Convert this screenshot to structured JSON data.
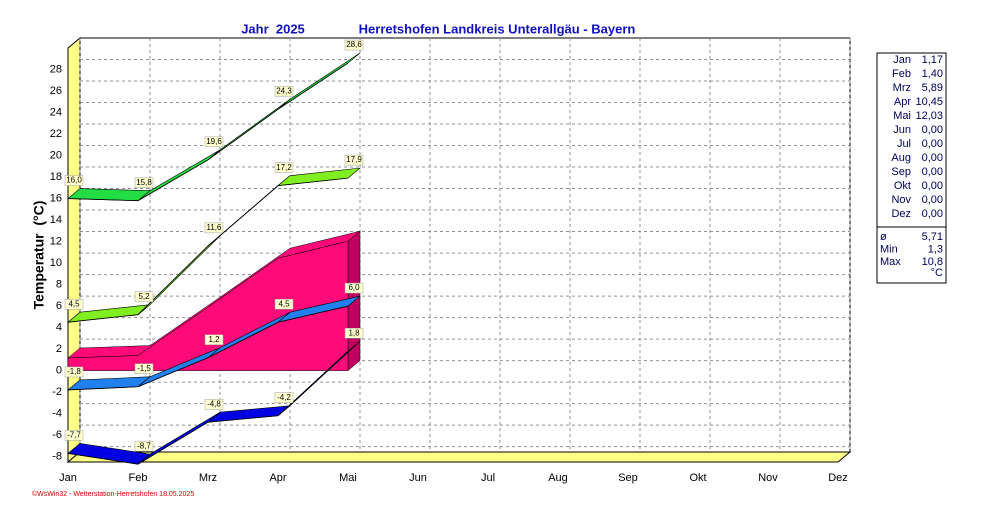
{
  "chart_data": {
    "type": "line",
    "title": "Jahr  2025",
    "subtitle": "Herretshofen Landkreis Unterallgäu - Bayern",
    "y_label": "Temperatur  (°C)",
    "categories": [
      "Jan",
      "Feb",
      "Mrz",
      "Apr",
      "Mai",
      "Jun",
      "Jul",
      "Aug",
      "Sep",
      "Okt",
      "Nov",
      "Dez"
    ],
    "ylim": [
      -8.5,
      30
    ],
    "yticks": [
      -8,
      -6,
      -4,
      -2,
      0,
      2,
      4,
      6,
      8,
      10,
      12,
      14,
      16,
      18,
      20,
      22,
      24,
      26,
      28
    ],
    "grid": true,
    "area": {
      "color": "#ff0a78",
      "values": [
        1.17,
        1.4,
        5.89,
        10.45,
        12.03,
        null,
        null,
        null,
        null,
        null,
        null,
        null
      ]
    },
    "series": [
      {
        "color": "#22dd44",
        "values": [
          16.0,
          15.8,
          19.6,
          24.3,
          28.6,
          null,
          null,
          null,
          null,
          null,
          null,
          null
        ],
        "value_labels": [
          "16,0",
          "15,8",
          "19,6",
          "24,3",
          "28,6",
          null,
          null,
          null,
          null,
          null,
          null,
          null
        ]
      },
      {
        "color": "#80ee20",
        "values": [
          4.5,
          5.2,
          11.6,
          17.2,
          17.9,
          null,
          null,
          null,
          null,
          null,
          null,
          null
        ],
        "value_labels": [
          "4,5",
          "5,2",
          "11,6",
          "17,2",
          "17,9",
          null,
          null,
          null,
          null,
          null,
          null,
          null
        ]
      },
      {
        "color": "#2080ee",
        "values": [
          -1.8,
          -1.5,
          1.2,
          4.5,
          6.0,
          null,
          null,
          null,
          null,
          null,
          null,
          null
        ],
        "value_labels": [
          "-1,8",
          "-1,5",
          "1,2",
          "4,5",
          "6,0",
          null,
          null,
          null,
          null,
          null,
          null,
          null
        ]
      },
      {
        "color": "#0000e0",
        "values": [
          -7.7,
          -8.7,
          -4.8,
          -4.2,
          1.8,
          null,
          null,
          null,
          null,
          null,
          null,
          null
        ],
        "value_labels": [
          "-7,7",
          "-8,7",
          "-4,8",
          "-4,2",
          "1,8",
          null,
          null,
          null,
          null,
          null,
          null,
          null
        ]
      }
    ],
    "summary": {
      "rows": [
        [
          "Jan",
          "1,17"
        ],
        [
          "Feb",
          "1,40"
        ],
        [
          "Mrz",
          "5,89"
        ],
        [
          "Apr",
          "10,45"
        ],
        [
          "Mai",
          "12,03"
        ],
        [
          "Jun",
          "0,00"
        ],
        [
          "Jul",
          "0,00"
        ],
        [
          "Aug",
          "0,00"
        ],
        [
          "Sep",
          "0,00"
        ],
        [
          "Okt",
          "0,00"
        ],
        [
          "Nov",
          "0,00"
        ],
        [
          "Dez",
          "0,00"
        ]
      ],
      "stats": [
        [
          "ø",
          "5,71"
        ],
        [
          "Min",
          "1,3"
        ],
        [
          "Max",
          "10,8"
        ]
      ],
      "unit": "°C"
    },
    "footer": "©WsWin32 - Wetterstation-Herretshofen 18.05.2025"
  }
}
